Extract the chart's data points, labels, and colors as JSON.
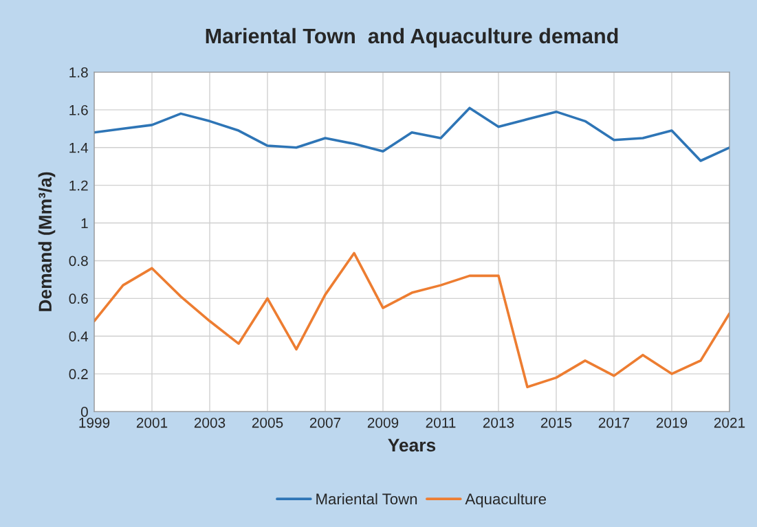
{
  "chart_data": {
    "type": "line",
    "title": "Mariental Town  and Aquaculture demand",
    "xlabel": "Years",
    "ylabel": "Demand (Mm³/a)",
    "x": [
      1999,
      2000,
      2001,
      2002,
      2003,
      2004,
      2005,
      2006,
      2007,
      2008,
      2009,
      2010,
      2011,
      2012,
      2013,
      2014,
      2015,
      2016,
      2017,
      2018,
      2019,
      2020,
      2021
    ],
    "series": [
      {
        "name": "Mariental Town",
        "color": "#2e75b6",
        "values": [
          1.48,
          1.5,
          1.52,
          1.58,
          1.54,
          1.49,
          1.41,
          1.4,
          1.45,
          1.42,
          1.38,
          1.48,
          1.45,
          1.61,
          1.51,
          1.55,
          1.59,
          1.54,
          1.44,
          1.45,
          1.49,
          1.33,
          1.4
        ]
      },
      {
        "name": "Aquaculture",
        "color": "#ed7d31",
        "values": [
          0.48,
          0.67,
          0.76,
          0.61,
          0.48,
          0.36,
          0.6,
          0.33,
          0.62,
          0.84,
          0.55,
          0.63,
          0.67,
          0.72,
          0.72,
          0.13,
          0.18,
          0.27,
          0.19,
          0.3,
          0.2,
          0.27,
          0.52
        ]
      }
    ],
    "xlim": [
      1999,
      2021
    ],
    "xticks": [
      1999,
      2001,
      2003,
      2005,
      2007,
      2009,
      2011,
      2013,
      2015,
      2017,
      2019,
      2021
    ],
    "ylim": [
      0,
      1.8
    ],
    "yticks": [
      0,
      0.2,
      0.4,
      0.6,
      0.8,
      1,
      1.2,
      1.4,
      1.6,
      1.8
    ],
    "grid": true,
    "legend": "bottom",
    "line_style": "solid",
    "marker": "none"
  }
}
